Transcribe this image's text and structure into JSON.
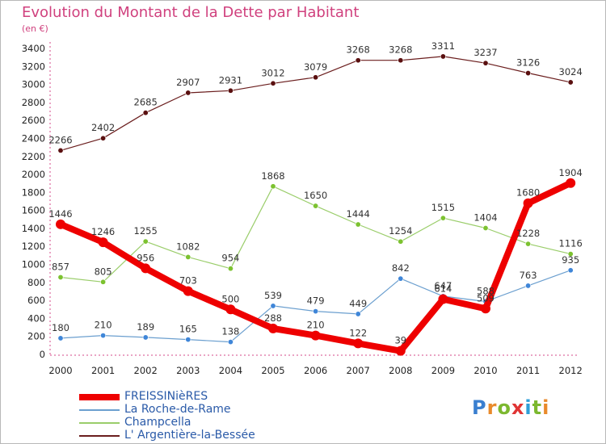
{
  "title": "Evolution du Montant de la Dette par Habitant",
  "subtitle": "(en €)",
  "logo": {
    "letters": [
      {
        "ch": "P",
        "color": "#3a7fd0"
      },
      {
        "ch": "r",
        "color": "#e98a2b"
      },
      {
        "ch": "o",
        "color": "#7cb82f"
      },
      {
        "ch": "x",
        "color": "#e03434"
      },
      {
        "ch": "i",
        "color": "#2f9fd8"
      },
      {
        "ch": "t",
        "color": "#7cb82f"
      },
      {
        "ch": "i",
        "color": "#e98a2b"
      }
    ]
  },
  "chart_data": {
    "type": "line",
    "categories": [
      "2000",
      "2001",
      "2002",
      "2003",
      "2004",
      "2005",
      "2006",
      "2007",
      "2008",
      "2009",
      "2010",
      "2011",
      "2012"
    ],
    "ylim": [
      0,
      3400
    ],
    "yticks": [
      0,
      200,
      400,
      600,
      800,
      1000,
      1200,
      1400,
      1600,
      1800,
      2000,
      2200,
      2400,
      2600,
      2800,
      3000,
      3200,
      3400
    ],
    "grid": false,
    "legend_position": "bottom-left",
    "series": [
      {
        "name": "L' Argentière-la-Bessée",
        "color": "#6b1e1e",
        "marker": "#5a1010",
        "width": 1.2,
        "values": [
          2266,
          2402,
          2685,
          2907,
          2931,
          3012,
          3079,
          3268,
          3268,
          3311,
          3237,
          3126,
          3024
        ]
      },
      {
        "name": "Champcella",
        "color": "#9acd6a",
        "marker": "#7cc230",
        "width": 1.2,
        "values": [
          857,
          805,
          1255,
          1082,
          954,
          1868,
          1650,
          1444,
          1254,
          1515,
          1404,
          1228,
          1116
        ]
      },
      {
        "name": "La Roche-de-Rame",
        "color": "#6b9fcf",
        "marker": "#3f86d8",
        "width": 1.2,
        "values": [
          180,
          210,
          189,
          165,
          138,
          539,
          479,
          449,
          842,
          647,
          588,
          763,
          935
        ]
      },
      {
        "name": "FREISSINièRES",
        "color": "#ee0000",
        "marker": "#ee0000",
        "width": 8,
        "values": [
          1446,
          1246,
          956,
          703,
          500,
          288,
          210,
          122,
          39,
          614,
          509,
          1680,
          1904
        ]
      }
    ],
    "data_labels": [
      [
        "2266",
        "2402",
        "2685",
        "2907",
        "2931",
        "3012",
        "3079",
        "3268",
        "3268",
        "3311",
        "3237",
        "3126",
        "3024"
      ],
      [
        "857",
        "805",
        "1255",
        "1082",
        "954",
        "1868",
        "1650",
        "1444",
        "1254",
        "1515",
        "1404",
        "1228",
        "1116"
      ],
      [
        "180",
        "210",
        "189",
        "165",
        "138",
        "539",
        "479",
        "449",
        "842",
        "647",
        "588",
        "763",
        "935"
      ],
      [
        "1446",
        "1246",
        "956",
        "703",
        "500",
        "288",
        "210",
        "122",
        "39",
        "614",
        "509",
        "1680",
        "1904"
      ]
    ]
  },
  "legend": [
    {
      "label": "FREISSINièRES",
      "color": "#ee0000",
      "thick": 8
    },
    {
      "label": "La Roche-de-Rame",
      "color": "#6b9fcf",
      "thick": 2
    },
    {
      "label": "Champcella",
      "color": "#9acd6a",
      "thick": 2
    },
    {
      "label": "L' Argentière-la-Bessée",
      "color": "#6b1e1e",
      "thick": 2
    }
  ]
}
